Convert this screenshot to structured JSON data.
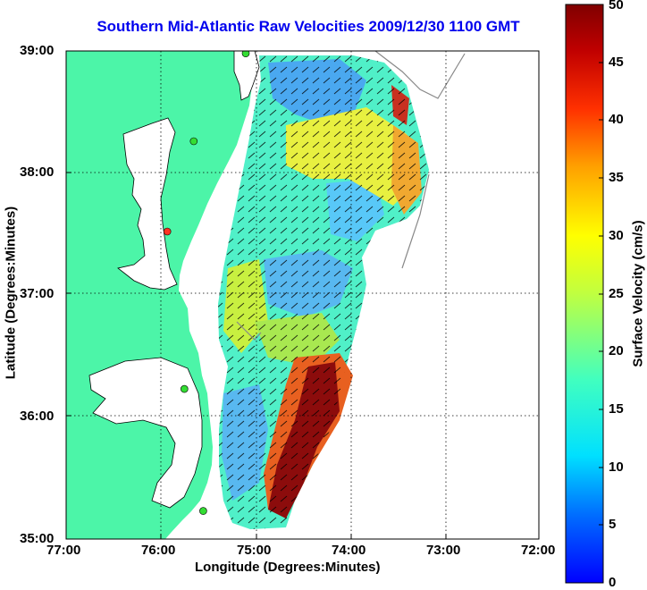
{
  "title": "Southern Mid-Atlantic Raw Velocities 2009/12/30 1100 GMT",
  "axes": {
    "xlabel": "Longitude (Degrees:Minutes)",
    "ylabel": "Latitude (Degrees:Minutes)",
    "x_ticks": [
      "77:00",
      "76:00",
      "75:00",
      "74:00",
      "73:00",
      "72:00"
    ],
    "y_ticks": [
      "39:00",
      "38:00",
      "37:00",
      "36:00",
      "35:00"
    ],
    "x_range_deg_west": [
      77,
      72
    ],
    "y_range_deg_north": [
      35,
      39
    ],
    "grid": "dotted"
  },
  "colorbar": {
    "label": "Surface Velocity (cm/s)",
    "ticks": [
      "0",
      "5",
      "10",
      "15",
      "20",
      "25",
      "30",
      "35",
      "40",
      "45",
      "50"
    ],
    "range": [
      0,
      50
    ],
    "colormap": "jet",
    "units": "cm/s"
  },
  "colors": {
    "land": "#4cf5a8",
    "ocean": "#ffffff",
    "title": "#0000ee",
    "site_active": "#33dd33",
    "site_inactive": "#ff3322"
  },
  "map_data": {
    "radar_sites": [
      {
        "status": "active",
        "lon": -75.1,
        "lat": 38.98
      },
      {
        "status": "active",
        "lon": -75.65,
        "lat": 38.26
      },
      {
        "status": "inactive",
        "lon": -75.93,
        "lat": 37.52
      },
      {
        "status": "active",
        "lon": -75.75,
        "lat": 36.23
      },
      {
        "status": "active",
        "lon": -75.55,
        "lat": 35.23
      }
    ]
  }
}
